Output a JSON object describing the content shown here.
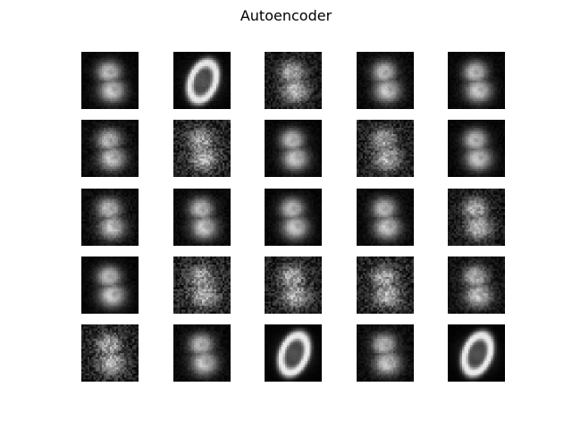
{
  "figure": {
    "title": "Autoencoder"
  },
  "grid": {
    "rows": 5,
    "cols": 5
  },
  "tiles": [
    {
      "digit": "8",
      "noise": 0.15
    },
    {
      "digit": "0",
      "noise": 0.1
    },
    {
      "digit": "8",
      "noise": 0.55
    },
    {
      "digit": "8",
      "noise": 0.2
    },
    {
      "digit": "8",
      "noise": 0.15
    },
    {
      "digit": "8",
      "noise": 0.25
    },
    {
      "digit": "8",
      "noise": 0.8
    },
    {
      "digit": "8",
      "noise": 0.15
    },
    {
      "digit": "8",
      "noise": 0.7
    },
    {
      "digit": "8",
      "noise": 0.15
    },
    {
      "digit": "8",
      "noise": 0.25
    },
    {
      "digit": "8",
      "noise": 0.2
    },
    {
      "digit": "8",
      "noise": 0.15
    },
    {
      "digit": "8",
      "noise": 0.2
    },
    {
      "digit": "8",
      "noise": 0.55
    },
    {
      "digit": "8",
      "noise": 0.15
    },
    {
      "digit": "8",
      "noise": 0.85
    },
    {
      "digit": "8",
      "noise": 0.75
    },
    {
      "digit": "8",
      "noise": 0.8
    },
    {
      "digit": "8",
      "noise": 0.4
    },
    {
      "digit": "8",
      "noise": 0.75
    },
    {
      "digit": "8",
      "noise": 0.2
    },
    {
      "digit": "0",
      "noise": 0.05
    },
    {
      "digit": "8",
      "noise": 0.25
    },
    {
      "digit": "0",
      "noise": 0.05
    }
  ],
  "colors": {
    "background": "#ffffff",
    "tile_bg": "#000000"
  }
}
